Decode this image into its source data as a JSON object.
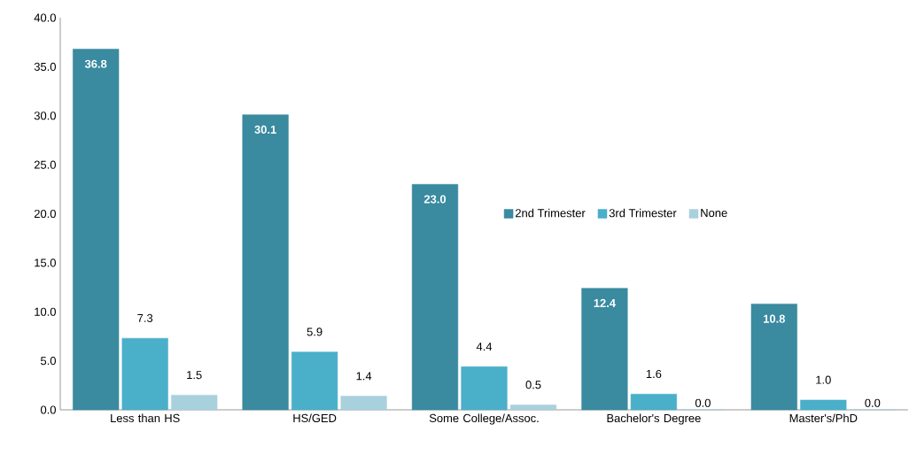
{
  "chart_data": {
    "type": "bar",
    "categories": [
      "Less than HS",
      "HS/GED",
      "Some College/Assoc.",
      "Bachelor's Degree",
      "Master's/PhD"
    ],
    "series": [
      {
        "name": "2nd Trimester",
        "color": "#3a8aa0",
        "values": [
          36.8,
          30.1,
          23.0,
          12.4,
          10.8
        ],
        "value_labels": [
          "36.8",
          "30.1",
          "23.0",
          "12.4",
          "10.8"
        ]
      },
      {
        "name": "3rd Trimester",
        "color": "#4aafc9",
        "values": [
          7.3,
          5.9,
          4.4,
          1.6,
          1.0
        ],
        "value_labels": [
          "7.3",
          "5.9",
          "4.4",
          "1.6",
          "1.0"
        ]
      },
      {
        "name": "None",
        "color": "#a9d1dd",
        "values": [
          1.5,
          1.4,
          0.5,
          0.0,
          0.0
        ],
        "value_labels": [
          "1.5",
          "1.4",
          "0.5",
          "0.0",
          "0.0"
        ]
      }
    ],
    "ylim": [
      0,
      40
    ],
    "yticks": [
      {
        "value": 0,
        "label": "0.0"
      },
      {
        "value": 5,
        "label": "5.0"
      },
      {
        "value": 10,
        "label": "10.0"
      },
      {
        "value": 15,
        "label": "15.0"
      },
      {
        "value": 20,
        "label": "20.0"
      },
      {
        "value": 25,
        "label": "25.0"
      },
      {
        "value": 30,
        "label": "30.0"
      },
      {
        "value": 35,
        "label": "35.0"
      },
      {
        "value": 40,
        "label": "40.0"
      }
    ],
    "grid": false,
    "legend": "right"
  }
}
